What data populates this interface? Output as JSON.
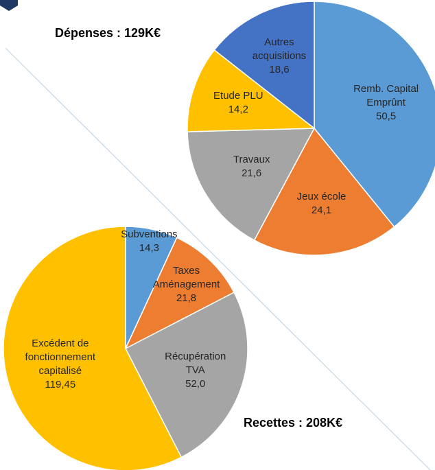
{
  "chart_data": [
    {
      "type": "pie",
      "title": "Dépenses : 129K€",
      "categories": [
        "Remb. Capital Emprûnt",
        "Jeux école",
        "Travaux",
        "Etude PLU",
        "Autres acquisitions"
      ],
      "values": [
        50.5,
        24.1,
        21.6,
        14.2,
        18.6
      ],
      "value_labels": [
        "50,5",
        "24,1",
        "21,6",
        "14,2",
        "18,6"
      ],
      "colors": [
        "#5b9bd5",
        "#ed7d31",
        "#a5a5a5",
        "#ffc000",
        "#4472c4"
      ]
    },
    {
      "type": "pie",
      "title": "Recettes : 208K€",
      "categories": [
        "Subventions",
        "Taxes Aménagement",
        "Récupération TVA",
        "Excédent de fonctionnement capitalisé"
      ],
      "values": [
        14.3,
        21.8,
        52.0,
        119.45
      ],
      "value_labels": [
        "14,3",
        "21,8",
        "52,0",
        "119,45"
      ],
      "colors": [
        "#5b9bd5",
        "#ed7d31",
        "#a5a5a5",
        "#ffc000"
      ]
    }
  ]
}
